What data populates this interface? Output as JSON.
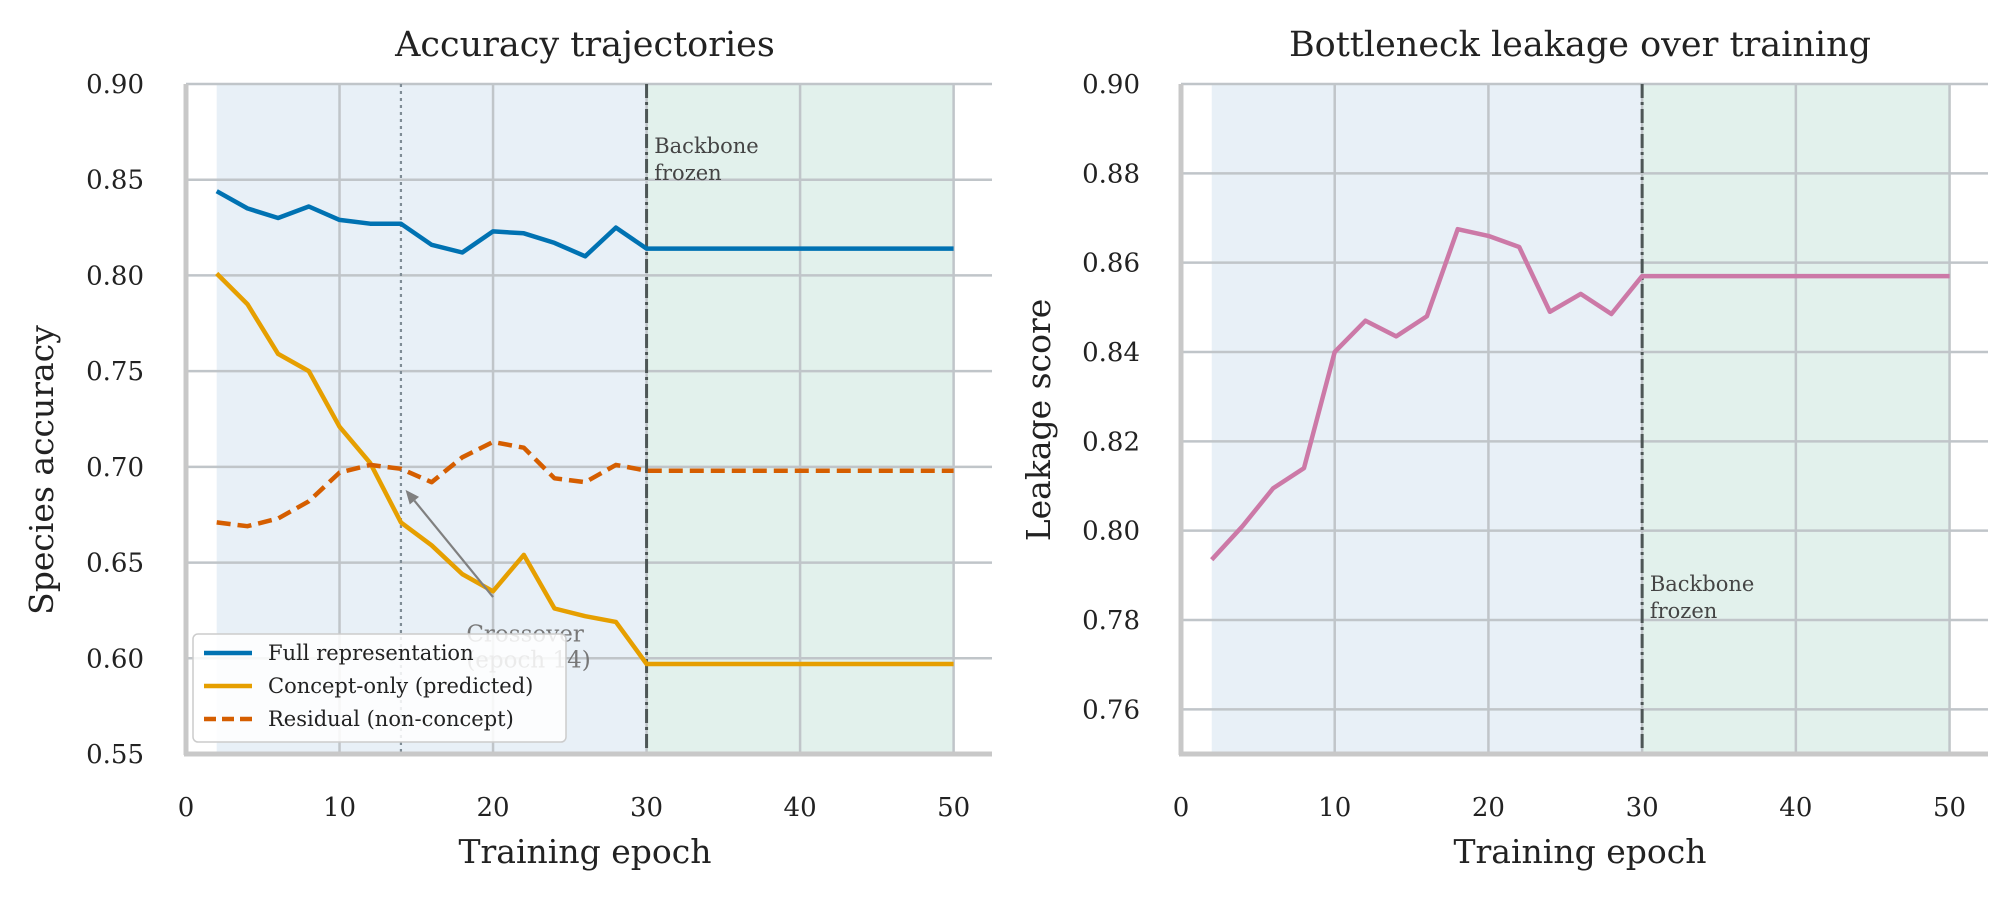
{
  "chart_data": [
    {
      "type": "line",
      "title": "Accuracy trajectories",
      "xlabel": "Training epoch",
      "ylabel": "Species accuracy",
      "xlim": [
        0,
        52.5
      ],
      "ylim": [
        0.55,
        0.9
      ],
      "xticks": [
        0,
        10,
        20,
        30,
        40,
        50
      ],
      "yticks": [
        0.55,
        0.6,
        0.65,
        0.7,
        0.75,
        0.8,
        0.85,
        0.9
      ],
      "grid": true,
      "legend_position": "lower-left",
      "shaded_regions": [
        {
          "from": 2,
          "to": 30,
          "color": "#e8f0f7"
        },
        {
          "from": 30,
          "to": 50,
          "color": "#e2f1ec"
        }
      ],
      "freeze_epoch": 30,
      "crossover_epoch": 14,
      "annotations": [
        {
          "text": [
            "Backbone",
            "frozen"
          ],
          "x": 30.5,
          "y": 0.863
        },
        {
          "text": [
            "Crossover",
            "(epoch 14)"
          ],
          "x": 18,
          "y": 0.613,
          "arrow_to": [
            14.3,
            0.688
          ]
        }
      ],
      "x": [
        2,
        4,
        6,
        8,
        10,
        12,
        14,
        16,
        18,
        20,
        22,
        24,
        26,
        28,
        30,
        32,
        34,
        36,
        38,
        40,
        42,
        44,
        46,
        48,
        50
      ],
      "series": [
        {
          "name": "Full representation",
          "color": "#0072b2",
          "dash": "solid",
          "values": [
            0.844,
            0.835,
            0.83,
            0.836,
            0.829,
            0.827,
            0.827,
            0.816,
            0.812,
            0.823,
            0.822,
            0.817,
            0.81,
            0.825,
            0.814,
            0.814,
            0.814,
            0.814,
            0.814,
            0.814,
            0.814,
            0.814,
            0.814,
            0.814,
            0.814
          ]
        },
        {
          "name": "Concept-only (predicted)",
          "color": "#e69f00",
          "dash": "solid",
          "values": [
            0.801,
            0.785,
            0.759,
            0.75,
            0.721,
            0.702,
            0.671,
            0.659,
            0.644,
            0.635,
            0.654,
            0.626,
            0.622,
            0.619,
            0.597,
            0.597,
            0.597,
            0.597,
            0.597,
            0.597,
            0.597,
            0.597,
            0.597,
            0.597,
            0.597
          ]
        },
        {
          "name": "Residual (non-concept)",
          "color": "#d55e00",
          "dash": "dashed",
          "values": [
            0.671,
            0.669,
            0.673,
            0.682,
            0.697,
            0.701,
            0.699,
            0.692,
            0.705,
            0.713,
            0.71,
            0.694,
            0.692,
            0.701,
            0.698,
            0.698,
            0.698,
            0.698,
            0.698,
            0.698,
            0.698,
            0.698,
            0.698,
            0.698,
            0.698
          ]
        }
      ]
    },
    {
      "type": "line",
      "title": "Bottleneck leakage over training",
      "xlabel": "Training epoch",
      "ylabel": "Leakage score",
      "xlim": [
        0,
        52.5
      ],
      "ylim": [
        0.75,
        0.9
      ],
      "xticks": [
        0,
        10,
        20,
        30,
        40,
        50
      ],
      "yticks": [
        0.76,
        0.78,
        0.8,
        0.82,
        0.84,
        0.86,
        0.88,
        0.9
      ],
      "grid": true,
      "shaded_regions": [
        {
          "from": 2,
          "to": 30,
          "color": "#e8f0f7"
        },
        {
          "from": 30,
          "to": 50,
          "color": "#e2f1ec"
        }
      ],
      "freeze_epoch": 30,
      "annotations": [
        {
          "text": [
            "Backbone",
            "frozen"
          ],
          "x": 30.5,
          "y": 0.786
        }
      ],
      "x": [
        2,
        4,
        6,
        8,
        10,
        12,
        14,
        16,
        18,
        20,
        22,
        24,
        26,
        28,
        30,
        32,
        34,
        36,
        38,
        40,
        42,
        44,
        46,
        48,
        50
      ],
      "series": [
        {
          "color": "#cc79a7",
          "dash": "solid",
          "values": [
            0.7935,
            0.801,
            0.8095,
            0.814,
            0.84,
            0.847,
            0.8435,
            0.848,
            0.8675,
            0.866,
            0.8635,
            0.849,
            0.853,
            0.8485,
            0.857,
            0.857,
            0.857,
            0.857,
            0.857,
            0.857,
            0.857,
            0.857,
            0.857,
            0.857,
            0.857
          ]
        }
      ]
    }
  ]
}
